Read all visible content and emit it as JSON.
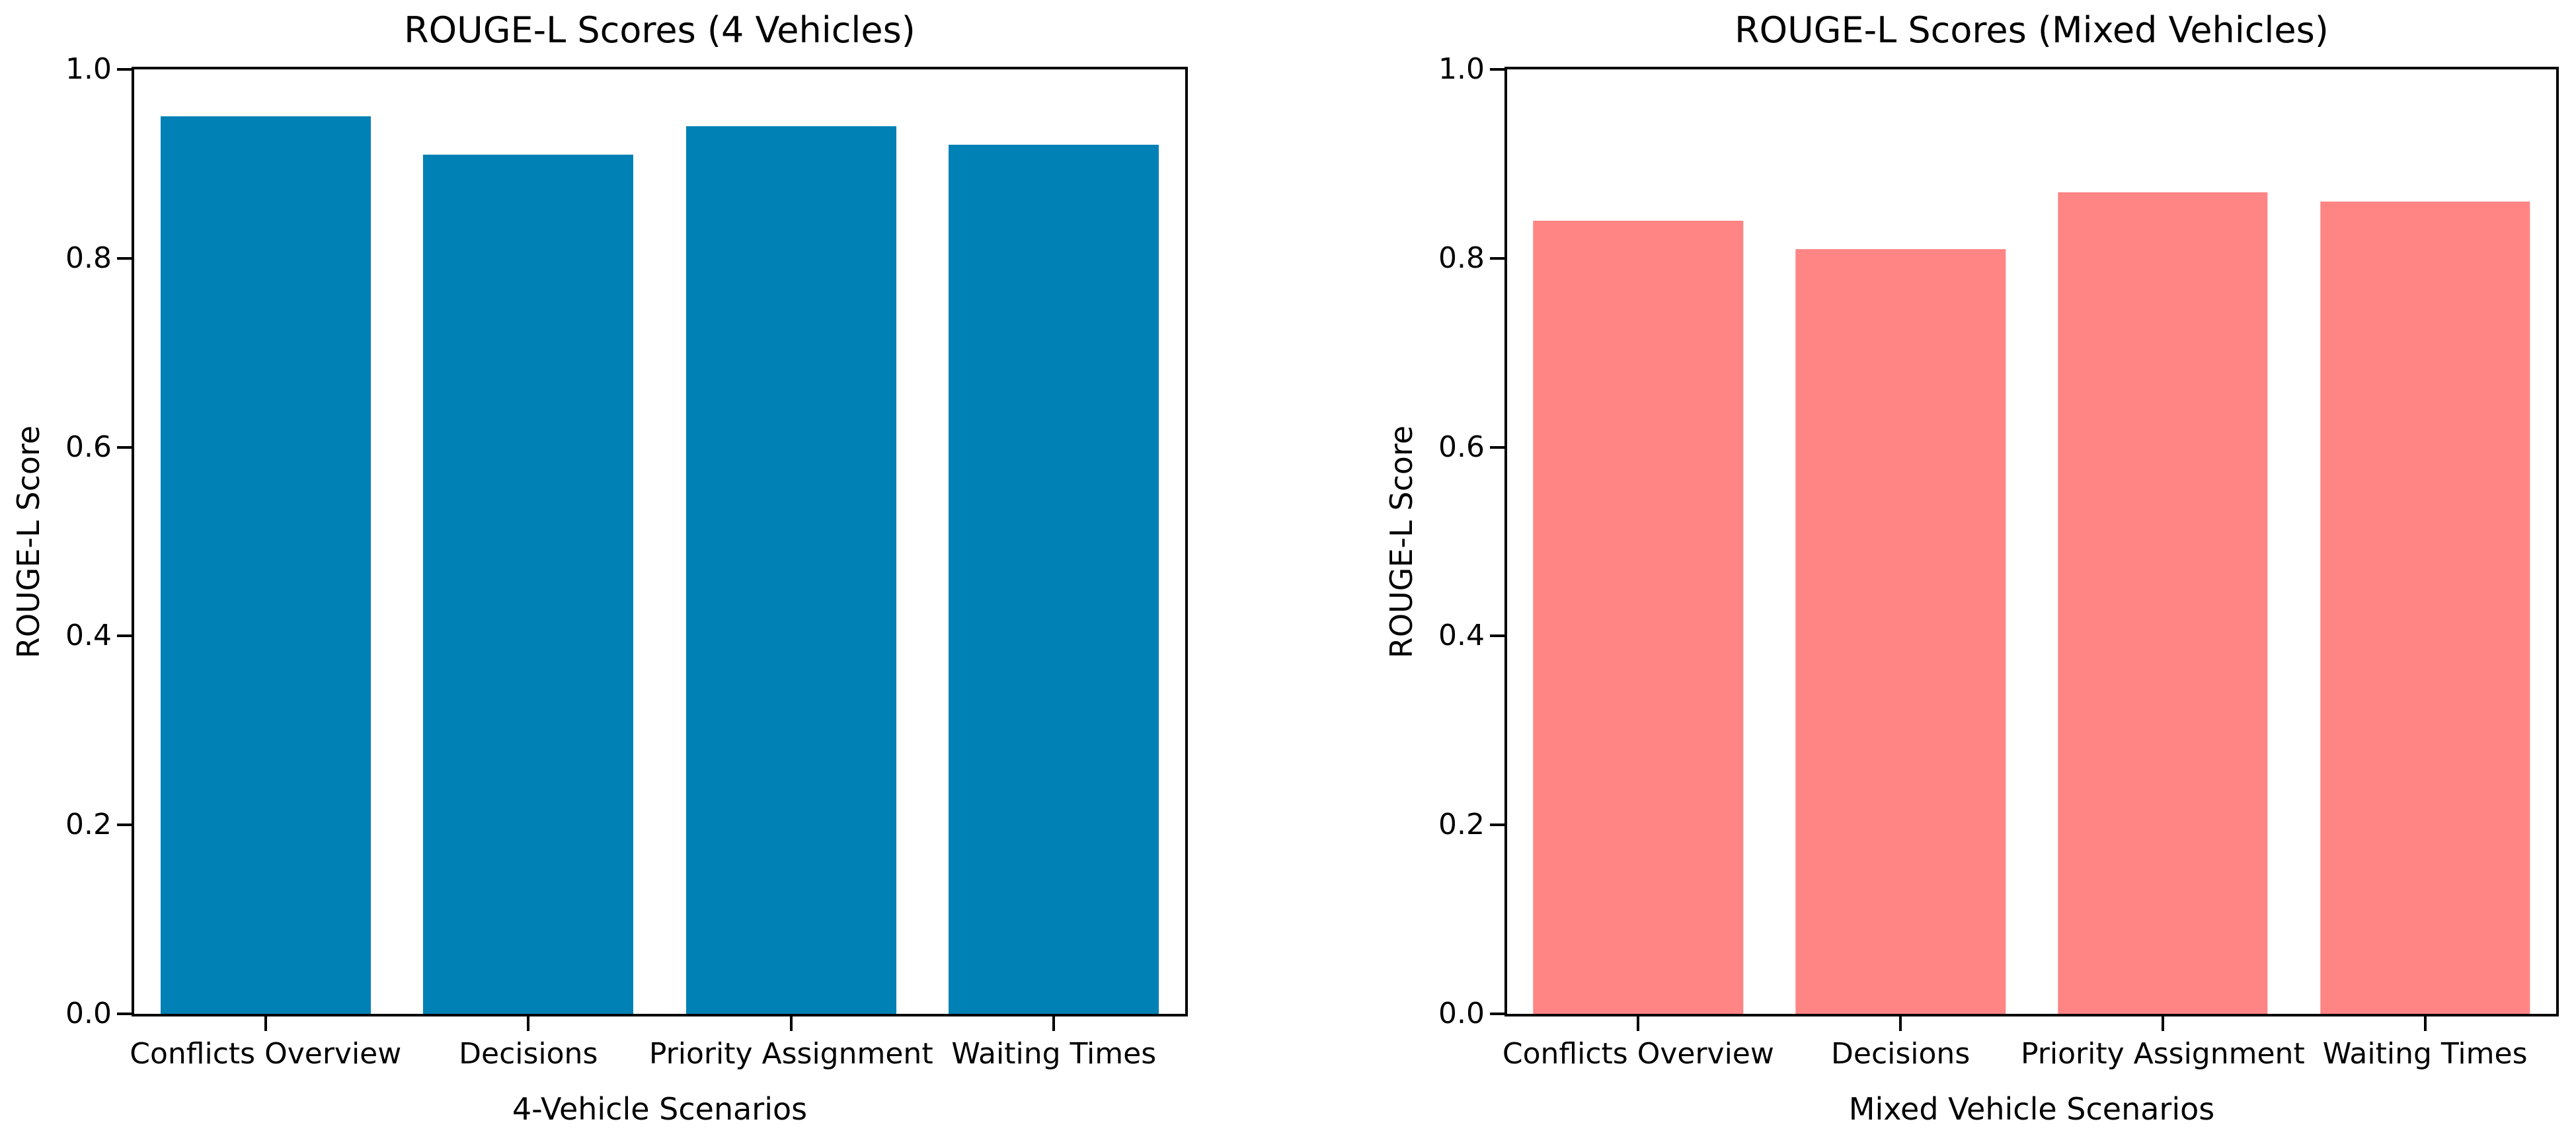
{
  "figure": {
    "background_color": "#ffffff",
    "text_color": "#000000"
  },
  "chart_data": [
    {
      "type": "bar",
      "title": "ROUGE-L Scores (4 Vehicles)",
      "xlabel": "4-Vehicle Scenarios",
      "ylabel": "ROUGE-L Score",
      "categories": [
        "Conflicts Overview",
        "Decisions",
        "Priority Assignment",
        "Waiting Times"
      ],
      "values": [
        0.95,
        0.91,
        0.94,
        0.92
      ],
      "bar_color": "#0081b5",
      "ylim": [
        0.0,
        1.0
      ],
      "yticks": [
        "0.0",
        "0.2",
        "0.4",
        "0.6",
        "0.8",
        "1.0"
      ],
      "grid": false,
      "legend": "none",
      "bar_width_fraction": 0.8
    },
    {
      "type": "bar",
      "title": "ROUGE-L Scores (Mixed Vehicles)",
      "xlabel": "Mixed Vehicle Scenarios",
      "ylabel": "ROUGE-L Score",
      "categories": [
        "Conflicts Overview",
        "Decisions",
        "Priority Assignment",
        "Waiting Times"
      ],
      "values": [
        0.84,
        0.81,
        0.87,
        0.86
      ],
      "bar_color": "#ff8484",
      "ylim": [
        0.0,
        1.0
      ],
      "yticks": [
        "0.0",
        "0.2",
        "0.4",
        "0.6",
        "0.8",
        "1.0"
      ],
      "grid": false,
      "legend": "none",
      "bar_width_fraction": 0.8
    }
  ]
}
